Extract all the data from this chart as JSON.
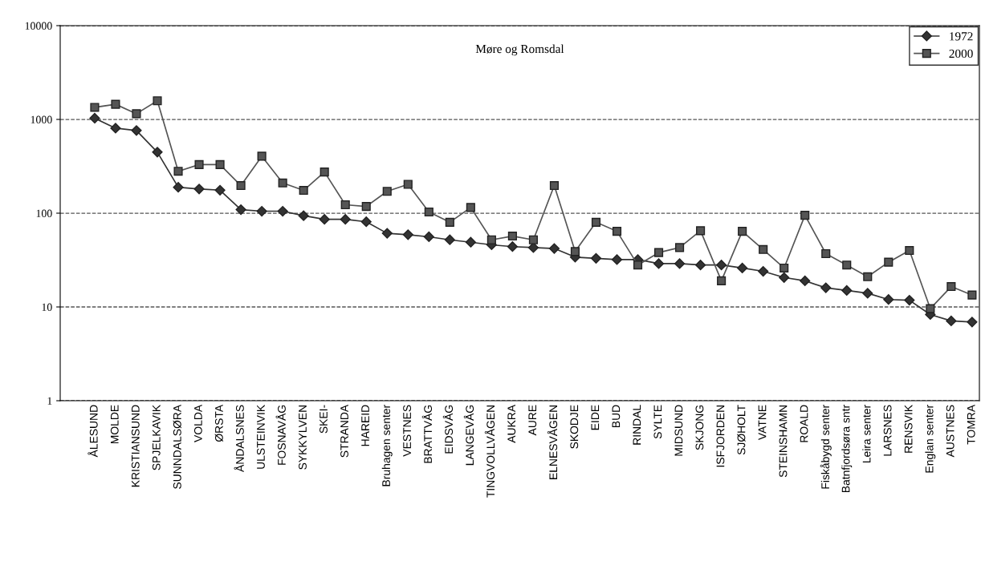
{
  "chart_data": {
    "type": "line",
    "title": "Møre og Romsdal",
    "categories": [
      "ÅLESUND",
      "MOLDE",
      "KRISTIANSUND",
      "SPJELKAVIK",
      "SUNNDALSØRA",
      "VOLDA",
      "ØRSTA",
      "ÅNDALSNES",
      "ULSTEINVIK",
      "FOSNAVÅG",
      "SYKKYLVEN",
      "SKEI-",
      "STRANDA",
      "HAREID",
      "Bruhagen senter",
      "VESTNES",
      "BRATTVÅG",
      "EIDSVÅG",
      "LANGEVÅG",
      "TINGVOLLVÅGEN",
      "AUKRA",
      "AURE",
      "ELNESVÅGEN",
      "SKODJE",
      "EIDE",
      "BUD",
      "RINDAL",
      "SYLTE",
      "MIDSUND",
      "SKJONG",
      "ISFJORDEN",
      "SJØHOLT",
      "VATNE",
      "STEINSHAMN",
      "ROALD",
      "Fiskåbygd senter",
      "Batnfjordsøra sntr",
      "Leira senter",
      "LARSNES",
      "RENSVIK",
      "Englan senter",
      "AUSTNES",
      "TOMRA"
    ],
    "series": [
      {
        "name": "1972",
        "color": "#333333",
        "marker": "diamond",
        "values": [
          1030,
          807,
          762,
          448,
          189,
          181,
          176,
          109,
          105,
          105,
          94,
          86,
          86,
          81,
          61,
          59,
          56,
          52,
          49,
          46,
          44,
          43,
          42,
          34,
          33,
          32,
          32,
          29,
          29,
          28,
          28,
          26,
          24,
          20.6,
          19,
          16,
          15,
          14,
          12,
          11.8,
          8.3,
          7.1,
          6.9
        ]
      },
      {
        "name": "2000",
        "color": "#555555",
        "marker": "square",
        "values": [
          1345,
          1450,
          1150,
          1580,
          280,
          330,
          330,
          197,
          405,
          210,
          175,
          275,
          123,
          118,
          171,
          203,
          103,
          80,
          115,
          52,
          57,
          52,
          197,
          39,
          80,
          64,
          28,
          38,
          43,
          65,
          19,
          64,
          41,
          26,
          95,
          37,
          28,
          21,
          30,
          40,
          9.6,
          16.5,
          13.4
        ]
      }
    ],
    "log": "y",
    "ylim": [
      1,
      10000
    ],
    "yticks": [
      1,
      10,
      100,
      1000,
      10000
    ],
    "grid": "y",
    "legend": "top right",
    "line_style": "solid"
  }
}
